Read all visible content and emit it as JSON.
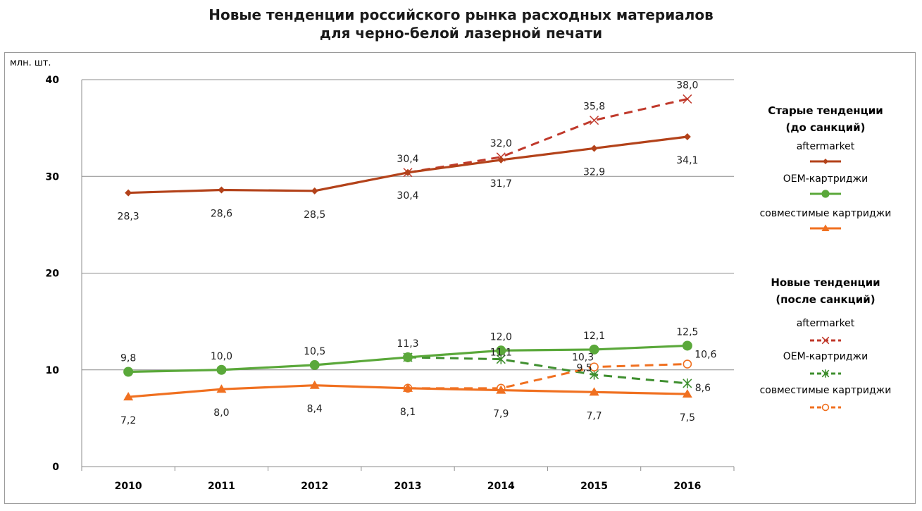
{
  "chart_data": {
    "type": "line",
    "title_lines": [
      "Новые тенденции российского рынка расходных материалов",
      "для черно-белой лазерной печати"
    ],
    "ylabel": "млн. шт.",
    "xlabel": "",
    "x": [
      "2010",
      "2011",
      "2012",
      "2013",
      "2014",
      "2015",
      "2016"
    ],
    "ylim": [
      0,
      40
    ],
    "yticks": [
      0,
      10,
      20,
      30,
      40
    ],
    "grid": "horizontal",
    "legend_position": "right",
    "groups": [
      {
        "title_lines": [
          "Старые тенденции",
          "(до санкций)"
        ]
      },
      {
        "title_lines": [
          "Новые тенденции",
          "(после санкций)"
        ]
      }
    ],
    "series": [
      {
        "name": "aftermarket",
        "group": 0,
        "color": "#b3421a",
        "dash": "solid",
        "marker": "diamond",
        "values": [
          28.3,
          28.6,
          28.5,
          30.4,
          31.7,
          32.9,
          34.1
        ],
        "labels": [
          "28,3",
          "28,6",
          "28,5",
          "30,4",
          "31,7",
          "32,9",
          "34,1"
        ],
        "label_pos": "below"
      },
      {
        "name": "ОЕМ-картриджи",
        "group": 0,
        "color": "#5aa83a",
        "dash": "solid",
        "marker": "circle",
        "values": [
          9.8,
          10.0,
          10.5,
          11.3,
          12.0,
          12.1,
          12.5
        ],
        "labels": [
          "9,8",
          "10,0",
          "10,5",
          "11,3",
          "12,0",
          "12,1",
          "12,5"
        ],
        "label_pos": "above"
      },
      {
        "name": "совместимые картриджи",
        "group": 0,
        "color": "#f07020",
        "dash": "solid",
        "marker": "triangle",
        "values": [
          7.2,
          8.0,
          8.4,
          8.1,
          7.9,
          7.7,
          7.5
        ],
        "labels": [
          "7,2",
          "8,0",
          "8,4",
          "8,1",
          "7,9",
          "7,7",
          "7,5"
        ],
        "label_pos": "below"
      },
      {
        "name": "aftermarket",
        "group": 1,
        "color": "#c0392b",
        "dash": "dashed",
        "marker": "x",
        "values": [
          null,
          null,
          null,
          30.4,
          32.0,
          35.8,
          38.0
        ],
        "labels": [
          null,
          null,
          null,
          "30,4",
          "32,0",
          "35,8",
          "38,0"
        ],
        "label_pos": "above"
      },
      {
        "name": "ОЕМ-картриджи",
        "group": 1,
        "color": "#3f8f2f",
        "dash": "dashed",
        "marker": "asterisk",
        "values": [
          null,
          null,
          null,
          11.3,
          11.1,
          9.5,
          8.6
        ],
        "labels": [
          null,
          null,
          null,
          null,
          "11,1",
          "9,5",
          "8,6"
        ],
        "label_pos": "custom"
      },
      {
        "name": "совместимые картриджи",
        "group": 1,
        "color": "#f07020",
        "dash": "dashed",
        "marker": "open-circle",
        "values": [
          null,
          null,
          null,
          8.1,
          8.1,
          10.3,
          10.6
        ],
        "labels": [
          null,
          null,
          null,
          null,
          null,
          "10,3",
          "10,6"
        ],
        "label_pos": "custom"
      }
    ]
  }
}
